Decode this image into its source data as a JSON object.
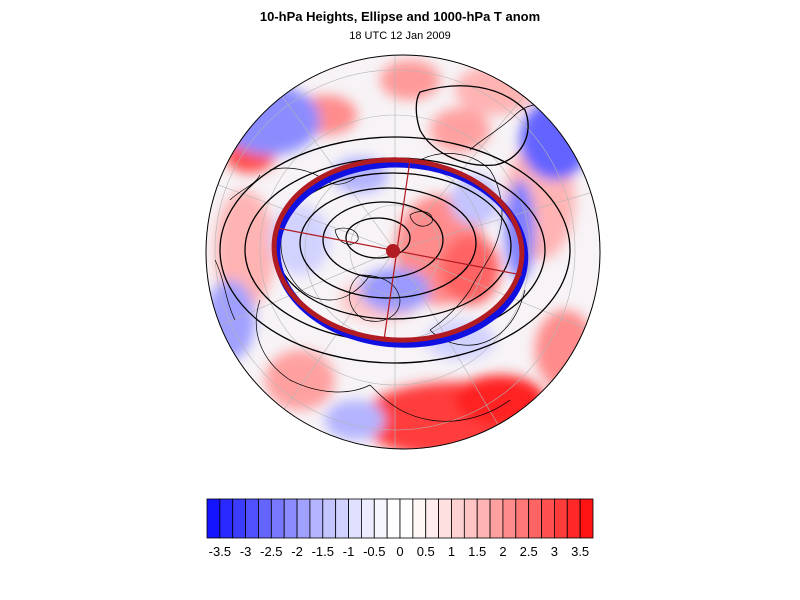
{
  "figure": {
    "title": "10-hPa Heights, Ellipse and 1000-hPa T anom",
    "subtitle": "18 UTC 12 Jan 2009"
  },
  "colors": {
    "ellipse": "#b01c22",
    "ellipse_edge": "#1010e0",
    "contour": "#000000",
    "coast": "#000000",
    "grid": "#b4b4b4"
  },
  "colorbar": {
    "tick_labels": [
      "-3.5",
      "-3",
      "-2.5",
      "-2",
      "-1.5",
      "-1",
      "-0.5",
      "0",
      "0.5",
      "1",
      "1.5",
      "2",
      "2.5",
      "3",
      "3.5"
    ],
    "levels": [
      -3.75,
      -3.5,
      -3.25,
      -3,
      -2.75,
      -2.5,
      -2.25,
      -2,
      -1.75,
      -1.5,
      -1.25,
      -1,
      -0.75,
      -0.5,
      -0.25,
      0,
      0.25,
      0.5,
      0.75,
      1,
      1.25,
      1.5,
      1.75,
      2,
      2.25,
      2.5,
      2.75,
      3,
      3.25,
      3.5,
      3.75
    ],
    "colors": [
      "#1414ff",
      "#2828ff",
      "#3c3cff",
      "#5050ff",
      "#6464ff",
      "#7878ff",
      "#8c8cff",
      "#a0a0ff",
      "#b4b4ff",
      "#c4c4ff",
      "#d2d2ff",
      "#e0e0ff",
      "#ececff",
      "#f6f6ff",
      "#ffffff",
      "#ffffff",
      "#fff6f6",
      "#ffecec",
      "#ffe0e0",
      "#ffd2d2",
      "#ffc4c4",
      "#ffb4b4",
      "#ffa0a0",
      "#ff8c8c",
      "#ff7878",
      "#ff6464",
      "#ff5050",
      "#ff3c3c",
      "#ff2828",
      "#ff1414"
    ]
  }
}
